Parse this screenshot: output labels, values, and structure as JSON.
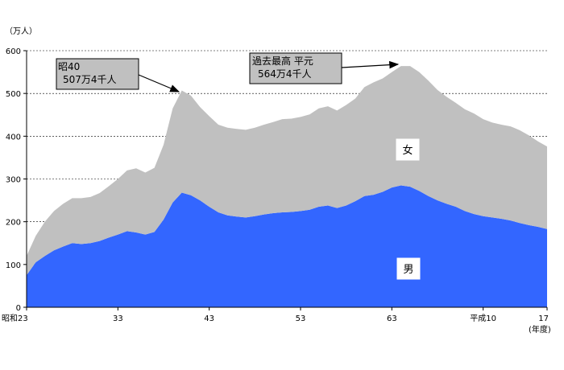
{
  "chart_data": {
    "type": "area",
    "title": "",
    "xlabel": "",
    "ylabel": "",
    "y_unit": "（万人）",
    "x_unit": "(年度)",
    "stacked": true,
    "ylim": [
      0,
      600
    ],
    "yticks": [
      0,
      100,
      200,
      300,
      400,
      500,
      600
    ],
    "xlim": [
      1948,
      2005
    ],
    "xticks": [
      {
        "year": 1948,
        "label": "昭和23"
      },
      {
        "year": 1958,
        "label": "33"
      },
      {
        "year": 1968,
        "label": "43"
      },
      {
        "year": 1978,
        "label": "53"
      },
      {
        "year": 1988,
        "label": "63"
      },
      {
        "year": 1998,
        "label": "平成10"
      },
      {
        "year": 2005,
        "label": "17"
      }
    ],
    "grid": "horizontal",
    "x": [
      1948,
      1949,
      1950,
      1951,
      1952,
      1953,
      1954,
      1955,
      1956,
      1957,
      1958,
      1959,
      1960,
      1961,
      1962,
      1963,
      1964,
      1965,
      1966,
      1967,
      1968,
      1969,
      1970,
      1971,
      1972,
      1973,
      1974,
      1975,
      1976,
      1977,
      1978,
      1979,
      1980,
      1981,
      1982,
      1983,
      1984,
      1985,
      1986,
      1987,
      1988,
      1989,
      1990,
      1991,
      1992,
      1993,
      1994,
      1995,
      1996,
      1997,
      1998,
      1999,
      2000,
      2001,
      2002,
      2003,
      2004,
      2005
    ],
    "series": [
      {
        "name": "男",
        "color": "#3366ff",
        "values": [
          75,
          105,
          120,
          133,
          142,
          150,
          148,
          150,
          155,
          163,
          170,
          178,
          175,
          170,
          176,
          205,
          245,
          268,
          262,
          250,
          235,
          222,
          215,
          212,
          210,
          213,
          217,
          220,
          222,
          223,
          225,
          228,
          235,
          238,
          232,
          238,
          248,
          260,
          263,
          270,
          280,
          285,
          282,
          272,
          260,
          250,
          242,
          235,
          225,
          218,
          213,
          210,
          207,
          203,
          197,
          192,
          188,
          183
        ]
      },
      {
        "name": "女",
        "color": "#c0c0c0",
        "values": [
          45,
          62,
          80,
          92,
          100,
          105,
          107,
          108,
          112,
          120,
          130,
          142,
          150,
          145,
          150,
          175,
          220,
          239,
          233,
          218,
          212,
          205,
          205,
          205,
          205,
          207,
          210,
          213,
          218,
          218,
          220,
          223,
          230,
          232,
          228,
          235,
          240,
          255,
          263,
          265,
          270,
          279,
          282,
          278,
          270,
          258,
          250,
          243,
          238,
          235,
          227,
          222,
          220,
          220,
          217,
          210,
          200,
          193
        ]
      }
    ],
    "annotations": [
      {
        "lines": [
          "昭40",
          "507万4千人"
        ],
        "year": 1965,
        "value": 507
      },
      {
        "lines": [
          "過去最高  平元",
          "564万4千人"
        ],
        "year": 1989,
        "value": 564
      }
    ]
  }
}
